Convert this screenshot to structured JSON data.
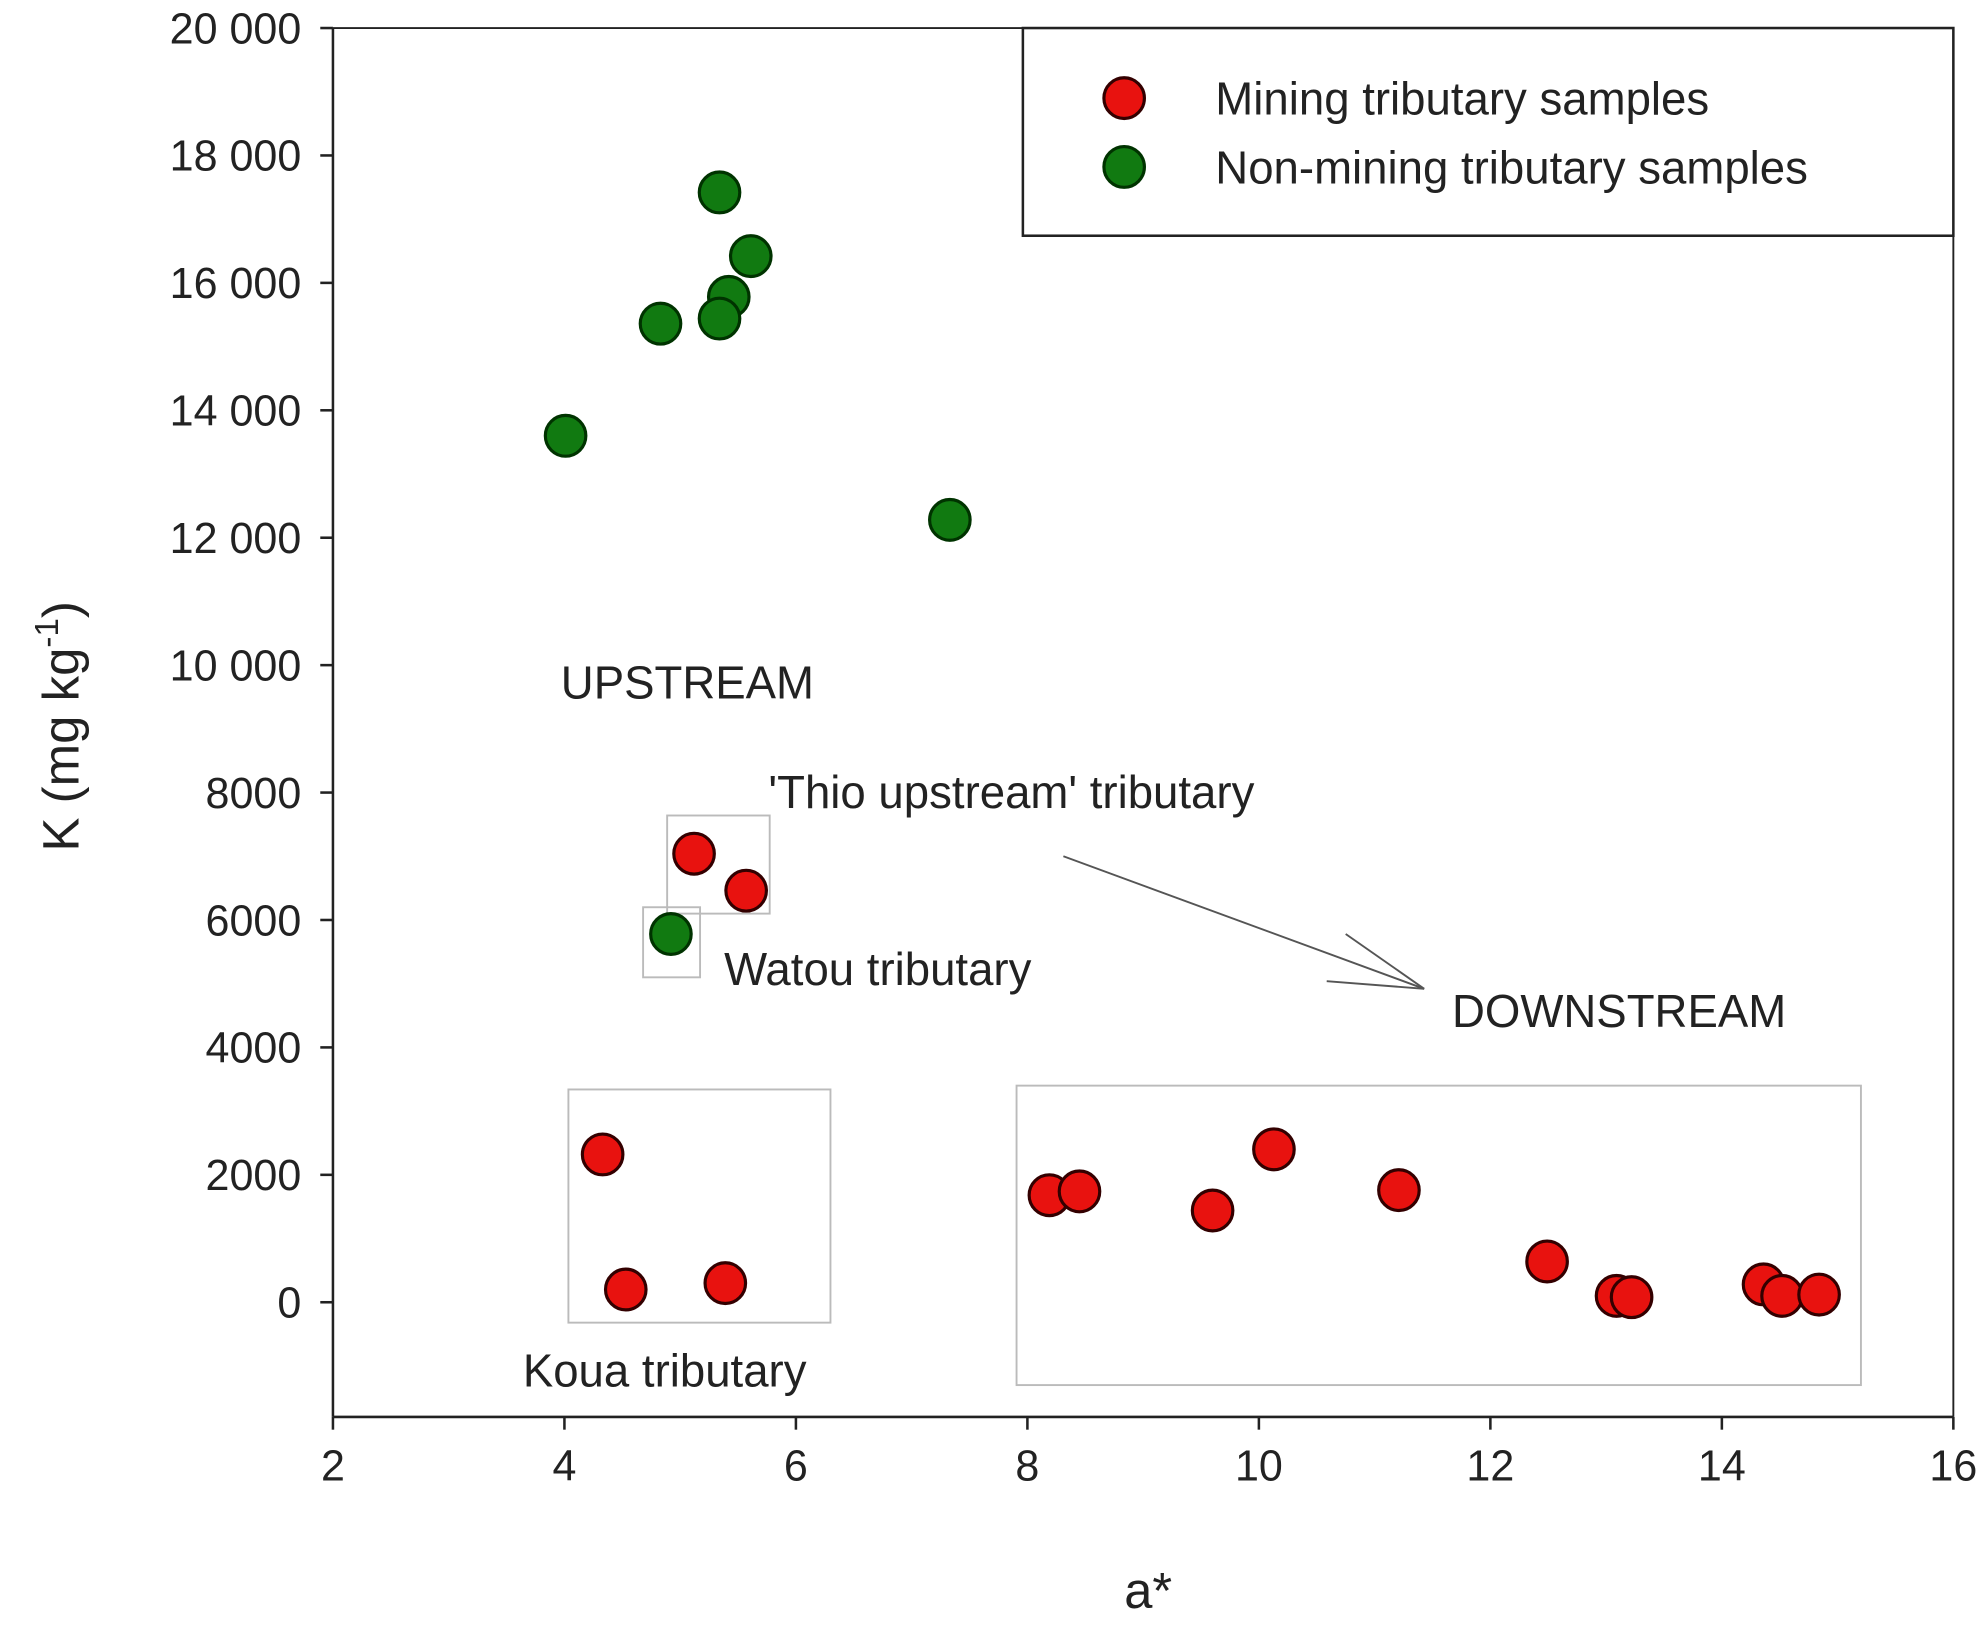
{
  "chart_data": {
    "type": "scatter",
    "title": "",
    "xlabel": "a*",
    "ylabel": "K (mg kg",
    "ylabel_sup": "-1",
    "ylabel_close": ")",
    "xlim": [
      2,
      16
    ],
    "ylim": [
      -1800,
      20000
    ],
    "xticks": [
      2,
      4,
      6,
      8,
      10,
      12,
      14,
      16
    ],
    "yticks": [
      0,
      2000,
      4000,
      6000,
      8000,
      10000,
      12000,
      14000,
      16000,
      18000,
      20000
    ],
    "ytick_labels": [
      "0",
      "2000",
      "4000",
      "6000",
      "8000",
      "10 000",
      "12 000",
      "14 000",
      "16 000",
      "18 000",
      "20 000"
    ],
    "xtick_labels": [
      "2",
      "4",
      "6",
      "8",
      "10",
      "12",
      "14",
      "16"
    ],
    "grid": false,
    "legend_position": "top-right",
    "series": [
      {
        "name": "Mining tributary samples",
        "color": "#e8120f",
        "x": [
          5.12,
          5.57,
          4.33,
          4.53,
          5.39,
          8.19,
          8.45,
          9.6,
          10.13,
          11.21,
          12.49,
          13.09,
          13.22,
          14.36,
          14.52,
          14.84
        ],
        "y": [
          7040,
          6460,
          2320,
          200,
          300,
          1680,
          1740,
          1440,
          2400,
          1760,
          640,
          100,
          80,
          280,
          100,
          120
        ]
      },
      {
        "name": "Non-mining tributary samples",
        "color": "#117a11",
        "x": [
          4.01,
          4.83,
          5.34,
          5.61,
          5.42,
          5.34,
          7.33,
          4.92
        ],
        "y": [
          13600,
          15360,
          17420,
          16420,
          15780,
          15440,
          12280,
          5780
        ]
      }
    ],
    "annotations": {
      "upstream": "UPSTREAM",
      "thio": "'Thio upstream' tributary",
      "watou": "Watou tributary",
      "downstream": "DOWNSTREAM",
      "koua": "Koua tributary"
    }
  }
}
